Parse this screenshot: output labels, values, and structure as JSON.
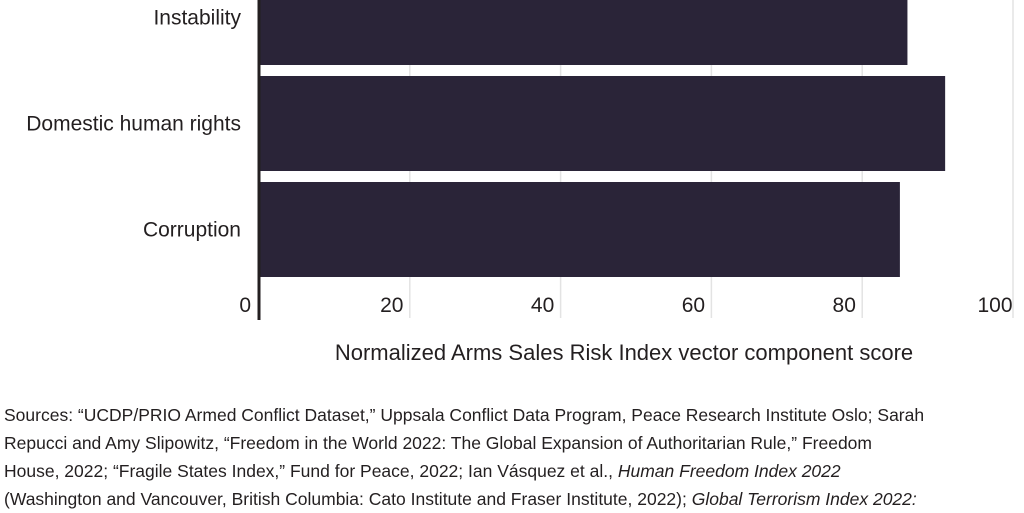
{
  "chart_data": {
    "type": "bar",
    "orientation": "horizontal",
    "categories": [
      "Instability",
      "Domestic human rights",
      "Corruption"
    ],
    "values": [
      86,
      91,
      85
    ],
    "xlabel": "Normalized Arms Sales Risk Index vector component score",
    "xlim": [
      0,
      100
    ],
    "xticks": [
      "0",
      "20",
      "40",
      "60",
      "80",
      "100"
    ],
    "grid": true,
    "bar_color": "#2a2438"
  },
  "sources": {
    "line1": "Sources: “UCDP/PRIO Armed Conflict Dataset,” Uppsala Conflict Data Program, Peace Research Institute Oslo; Sarah",
    "line2": "Repucci and Amy Slipowitz, “Freedom in the World 2022: The Global Expansion of Authoritarian Rule,” Freedom",
    "line3": "House, 2022; “Fragile States Index,” Fund for Peace, 2022; Ian Vásquez et al.,",
    "line3_italic": "Human Freedom Index 2022",
    "line4": "(Washington and Vancouver, British Columbia: Cato Institute and Fraser Institute, 2022);",
    "line4_italic": "Global Terrorism Index 2022:"
  }
}
